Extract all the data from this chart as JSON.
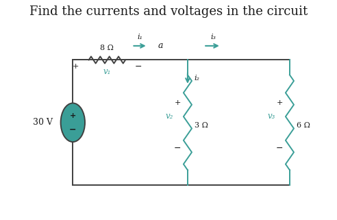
{
  "title": "Find the currents and voltages in the circuit",
  "title_fontsize": 13,
  "bg_color": "#ffffff",
  "teal_color": "#3a9e97",
  "black_color": "#1a1a1a",
  "wire_color": "#404040",
  "fig_width": 4.92,
  "fig_height": 3.21,
  "dpi": 100,
  "source_voltage": "30 V",
  "resistor_labels": [
    "8 Ω",
    "3 Ω",
    "6 Ω"
  ],
  "current_labels": [
    "i₁",
    "i₂",
    "i₃"
  ],
  "voltage_labels": [
    "v₁",
    "v₂",
    "v₃"
  ],
  "node_label": "a",
  "xlim": [
    0,
    10
  ],
  "ylim": [
    0,
    7
  ]
}
